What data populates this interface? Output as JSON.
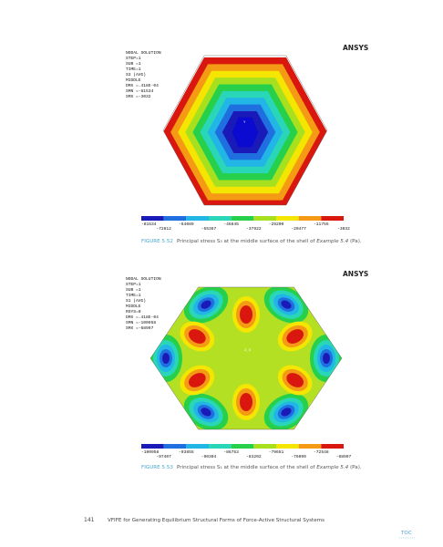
{
  "figures": [
    {
      "info": [
        "NODAL SOLUTION",
        "STEP=1",
        "SUB =1",
        "TIME=1",
        "S3       (AVG)",
        "MIDDLE",
        "DMX =.418E-04",
        "SMN =-81534",
        "SMX =-3032"
      ],
      "logo": "ANSYS",
      "axis_label": "Y",
      "legend_labels": [
        "-81534",
        "-72812",
        "-64089",
        "-55367",
        "-46645",
        "-37922",
        "-29200",
        "-20477",
        "-11755",
        "-3032"
      ],
      "caption": {
        "label": "FIGURE 5.52",
        "text": "Principal stress S₃ at the middle surface of the shell of ",
        "example": "Example 5.4",
        "tail": " (Pa)."
      }
    },
    {
      "info": [
        "NODAL SOLUTION",
        "STEP=1",
        "SUB =1",
        "TIME=1",
        "S1       (AVG)",
        "MIDDLE",
        "RSYS=0",
        "DMX =.418E-04",
        "SMN =-100958",
        "SMX =-68997"
      ],
      "logo": "ANSYS",
      "axis_label": "Z_X",
      "legend_labels": [
        "-100958",
        "-97407",
        "-93855",
        "-90304",
        "-86753",
        "-83202",
        "-79651",
        "-76099",
        "-72548",
        "-68997"
      ],
      "caption": {
        "label": "FIGURE 5.53",
        "text": "Principal stress S₁ at the middle surface of the shell of ",
        "example": "Example 5.4",
        "tail": " (Pa)."
      }
    }
  ],
  "footer": {
    "page": "141",
    "title": "VFIFE for Generating Equilibrium Structural Forms of Force-Active Structural Systems",
    "toc": "TOC"
  }
}
